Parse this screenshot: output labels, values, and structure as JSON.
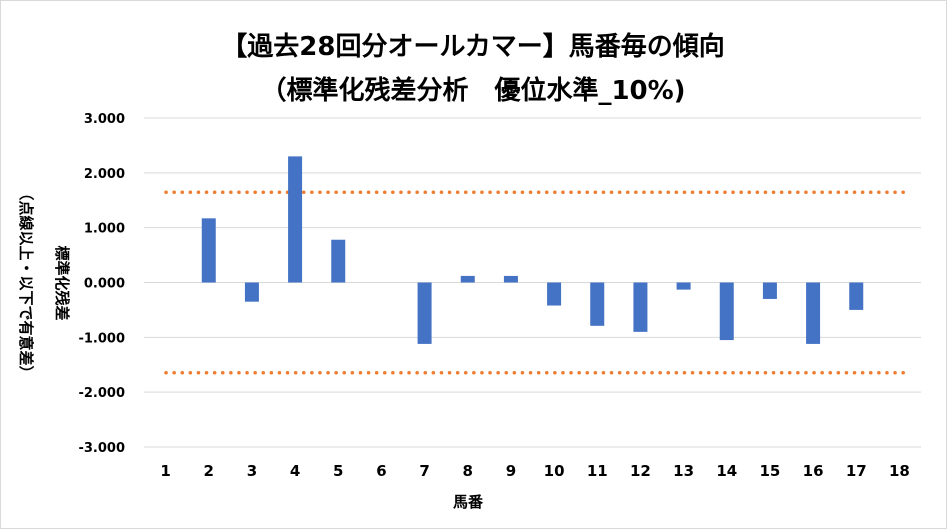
{
  "chart_data": {
    "type": "bar",
    "title": "【過去28回分オールカマー】馬番毎の傾向",
    "subtitle": "（標準化残差分析　優位水準_10%)",
    "xlabel": "馬番",
    "ylabel": "標準化残差",
    "ylabel_note": "（点線以上・以下で有意差）",
    "categories": [
      "1",
      "2",
      "3",
      "4",
      "5",
      "6",
      "7",
      "8",
      "9",
      "10",
      "11",
      "12",
      "13",
      "14",
      "15",
      "16",
      "17",
      "18"
    ],
    "values": [
      0,
      1.17,
      -0.35,
      2.3,
      0.78,
      0,
      -1.12,
      0.12,
      0.12,
      -0.42,
      -0.79,
      -0.9,
      -0.13,
      -1.05,
      -0.3,
      -1.12,
      -0.5,
      0
    ],
    "ylim": [
      -3,
      3
    ],
    "yticks": [
      3,
      2,
      1,
      0,
      -1,
      -2,
      -3
    ],
    "ytick_labels": [
      "3.000",
      "2.000",
      "1.000",
      "0.000",
      "-1.000",
      "-2.000",
      "-3.000"
    ],
    "thresholds": [
      1.645,
      -1.645
    ],
    "grid": true,
    "legend": "none",
    "colors": {
      "bar": "#4472c4",
      "threshold": "#ed7d31",
      "grid": "#d9d9d9"
    }
  }
}
